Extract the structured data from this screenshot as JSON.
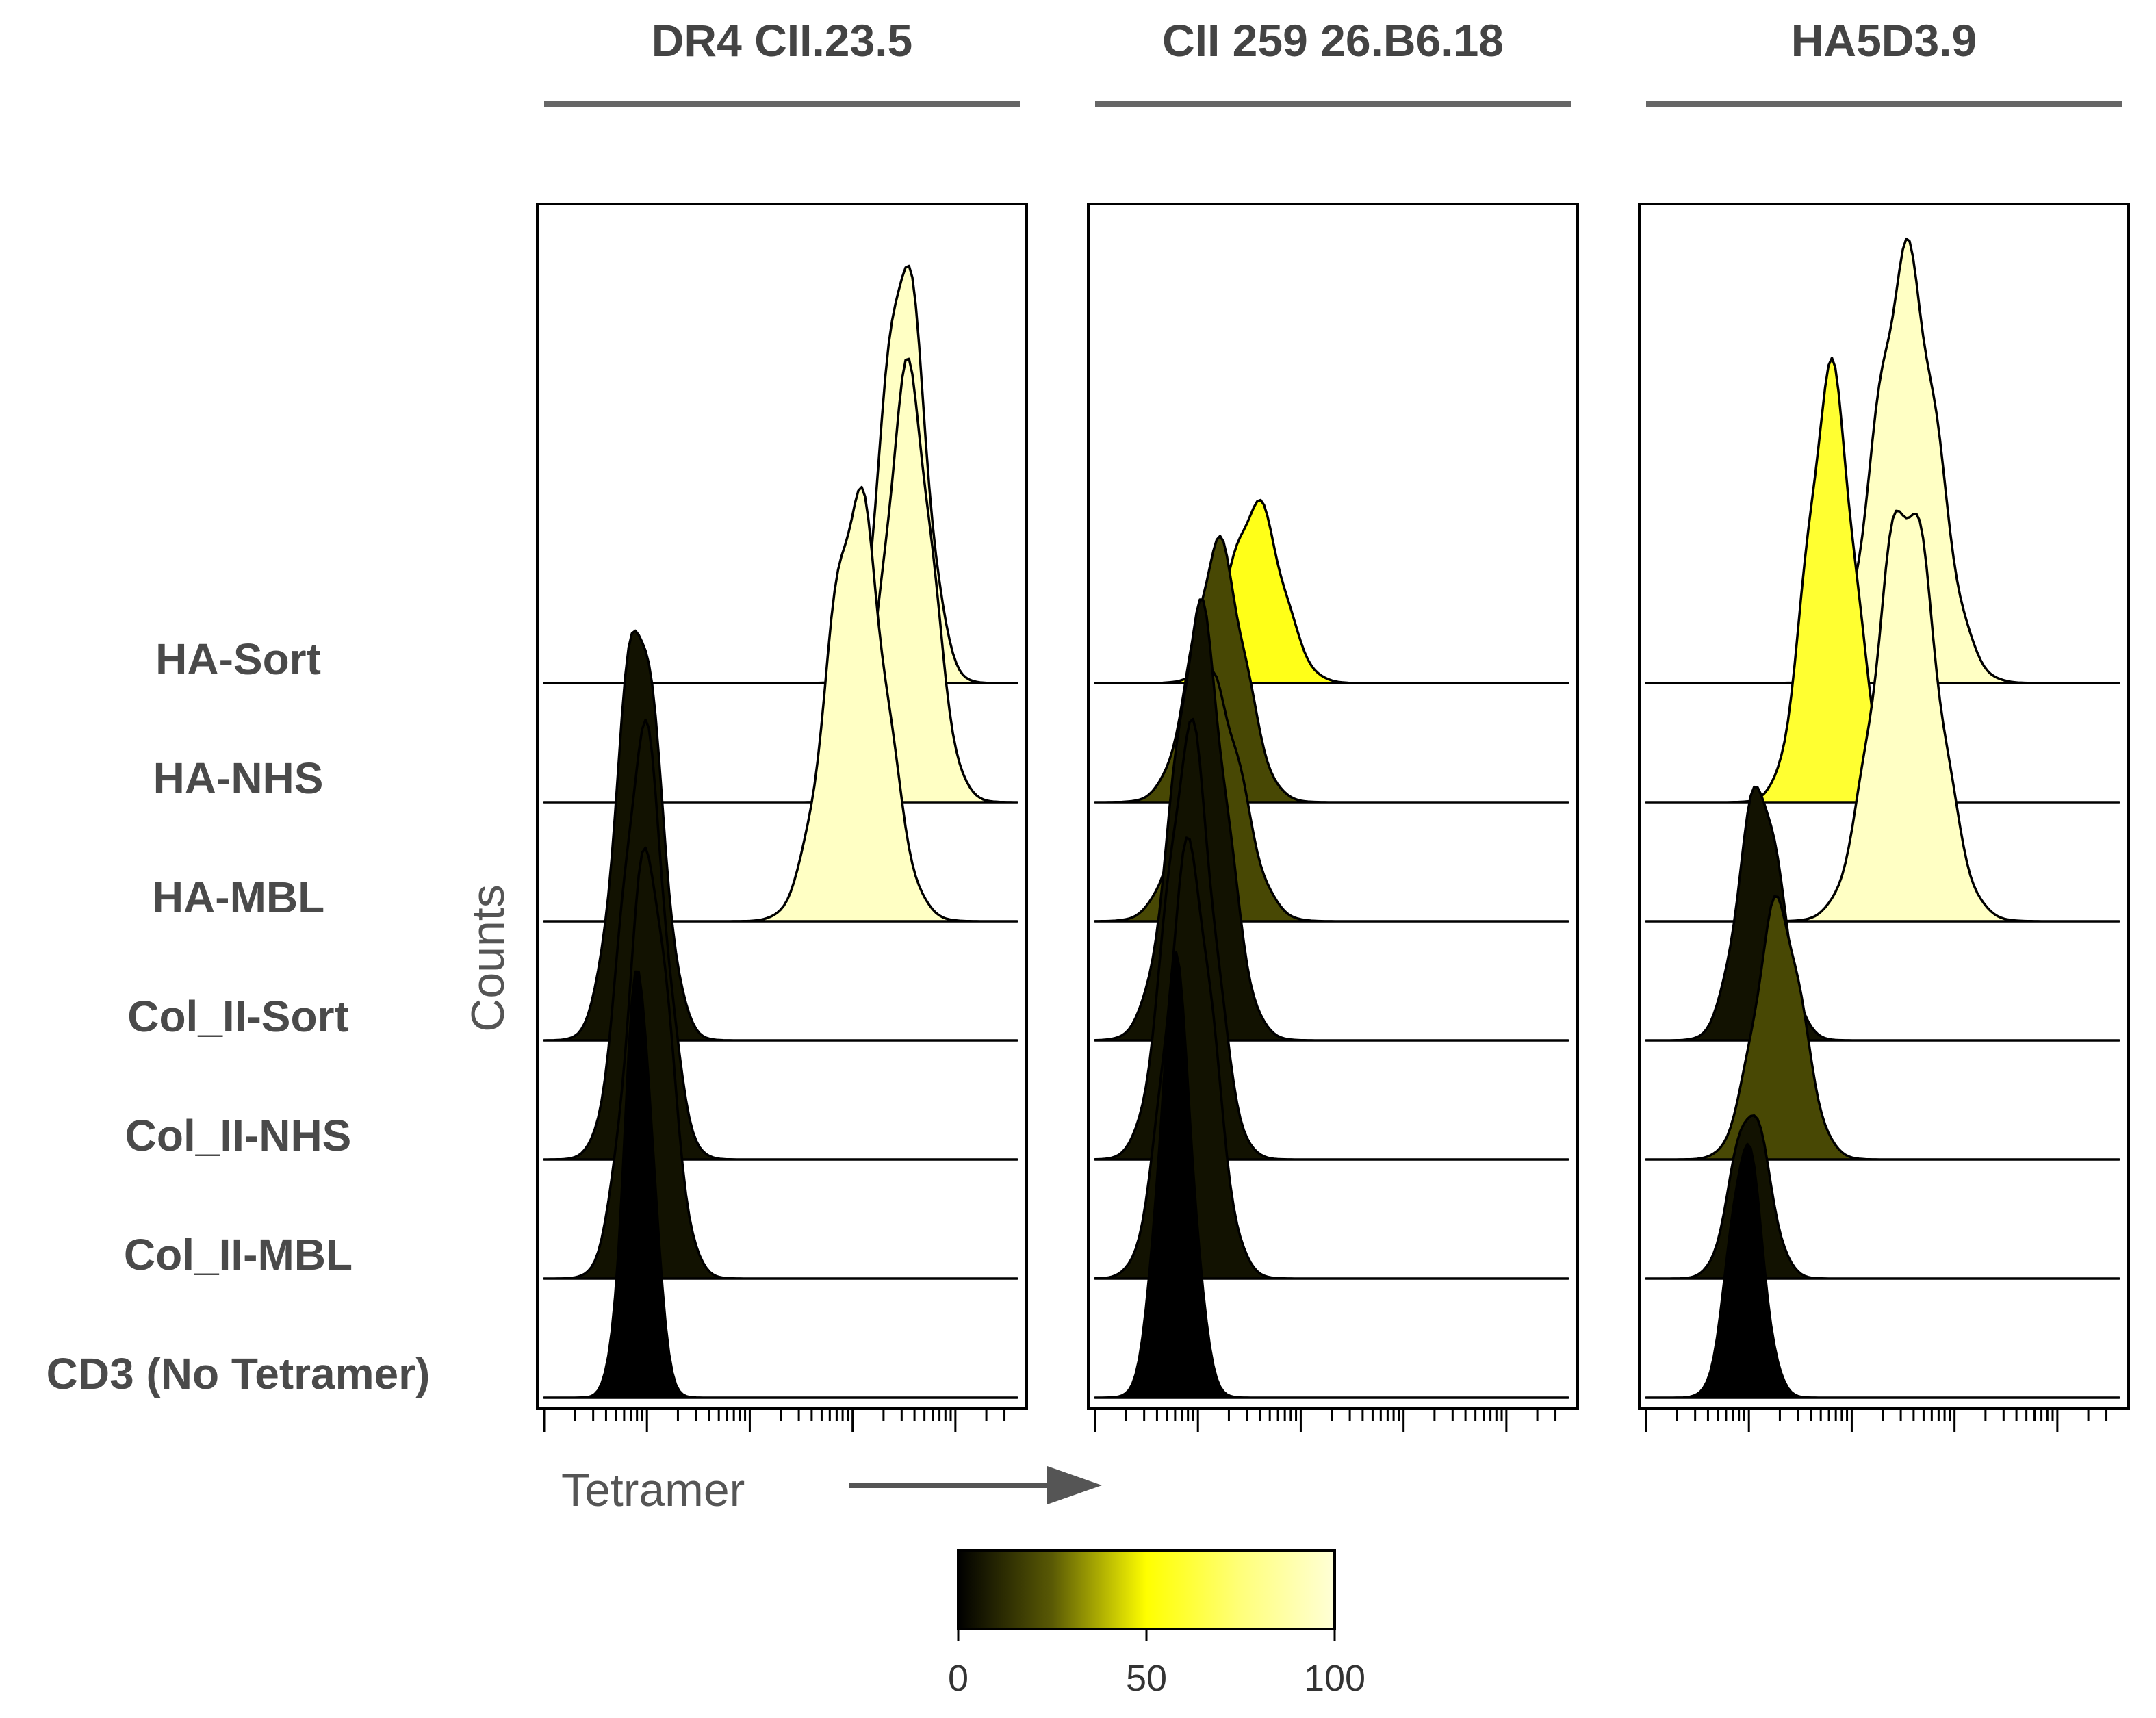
{
  "chart_data": {
    "type": "area",
    "subtype": "offset histogram (flow cytometry)",
    "panels": [
      {
        "title": "DR4 CII.23.5",
        "series": [
          {
            "name": "HA-Sort",
            "peak": 0.76,
            "width": 0.045,
            "height": 1.0,
            "colorValue": 95
          },
          {
            "name": "HA-NHS",
            "peak": 0.77,
            "width": 0.05,
            "height": 1.0,
            "colorValue": 95
          },
          {
            "name": "HA-MBL",
            "peak": 0.66,
            "width": 0.06,
            "height": 1.0,
            "colorValue": 95
          },
          {
            "name": "Col_II-Sort",
            "peak": 0.2,
            "width": 0.045,
            "height": 1.0,
            "colorValue": 5
          },
          {
            "name": "Col_II-NHS",
            "peak": 0.21,
            "width": 0.045,
            "height": 1.0,
            "colorValue": 5
          },
          {
            "name": "Col_II-MBL",
            "peak": 0.22,
            "width": 0.045,
            "height": 1.0,
            "colorValue": 5
          },
          {
            "name": "CD3 (No Tetramer)",
            "peak": 0.2,
            "width": 0.03,
            "height": 1.0,
            "colorValue": 0
          }
        ]
      },
      {
        "title": "CII 259 26.B6.18",
        "series": [
          {
            "name": "HA-Sort",
            "peak": 0.34,
            "width": 0.055,
            "height": 0.42,
            "colorValue": 55
          },
          {
            "name": "HA-NHS",
            "peak": 0.26,
            "width": 0.055,
            "height": 0.6,
            "colorValue": 20
          },
          {
            "name": "HA-MBL",
            "peak": 0.25,
            "width": 0.06,
            "height": 0.56,
            "colorValue": 20
          },
          {
            "name": "Col_II-Sort",
            "peak": 0.22,
            "width": 0.055,
            "height": 1.0,
            "colorValue": 5
          },
          {
            "name": "Col_II-NHS",
            "peak": 0.2,
            "width": 0.05,
            "height": 1.0,
            "colorValue": 5
          },
          {
            "name": "Col_II-MBL",
            "peak": 0.2,
            "width": 0.05,
            "height": 1.0,
            "colorValue": 5
          },
          {
            "name": "CD3 (No Tetramer)",
            "peak": 0.17,
            "width": 0.035,
            "height": 1.0,
            "colorValue": 0
          }
        ]
      },
      {
        "title": "HA5D3.9",
        "series": [
          {
            "name": "HA-Sort",
            "peak": 0.55,
            "width": 0.065,
            "height": 1.0,
            "colorValue": 95
          },
          {
            "name": "HA-NHS",
            "peak": 0.39,
            "width": 0.05,
            "height": 1.0,
            "colorValue": 60
          },
          {
            "name": "HA-MBL",
            "peak": 0.55,
            "width": 0.065,
            "height": 1.0,
            "colorValue": 95
          },
          {
            "name": "Col_II-Sort",
            "peak": 0.24,
            "width": 0.045,
            "height": 0.6,
            "colorValue": 5
          },
          {
            "name": "Col_II-NHS",
            "peak": 0.28,
            "width": 0.05,
            "height": 0.6,
            "colorValue": 20
          },
          {
            "name": "Col_II-MBL",
            "peak": 0.22,
            "width": 0.04,
            "height": 0.4,
            "colorValue": 5
          },
          {
            "name": "CD3 (No Tetramer)",
            "peak": 0.21,
            "width": 0.035,
            "height": 0.6,
            "colorValue": 0
          }
        ]
      }
    ],
    "categories": [
      "HA-Sort",
      "HA-NHS",
      "HA-MBL",
      "Col_II-Sort",
      "Col_II-NHS",
      "Col_II-MBL",
      "CD3 (No Tetramer)"
    ],
    "xlabel": "Tetramer",
    "ylabel": "Counts",
    "xscale": "log",
    "colorbar": {
      "min": 0,
      "max": 100,
      "ticks": [
        "0",
        "50",
        "100"
      ]
    }
  }
}
